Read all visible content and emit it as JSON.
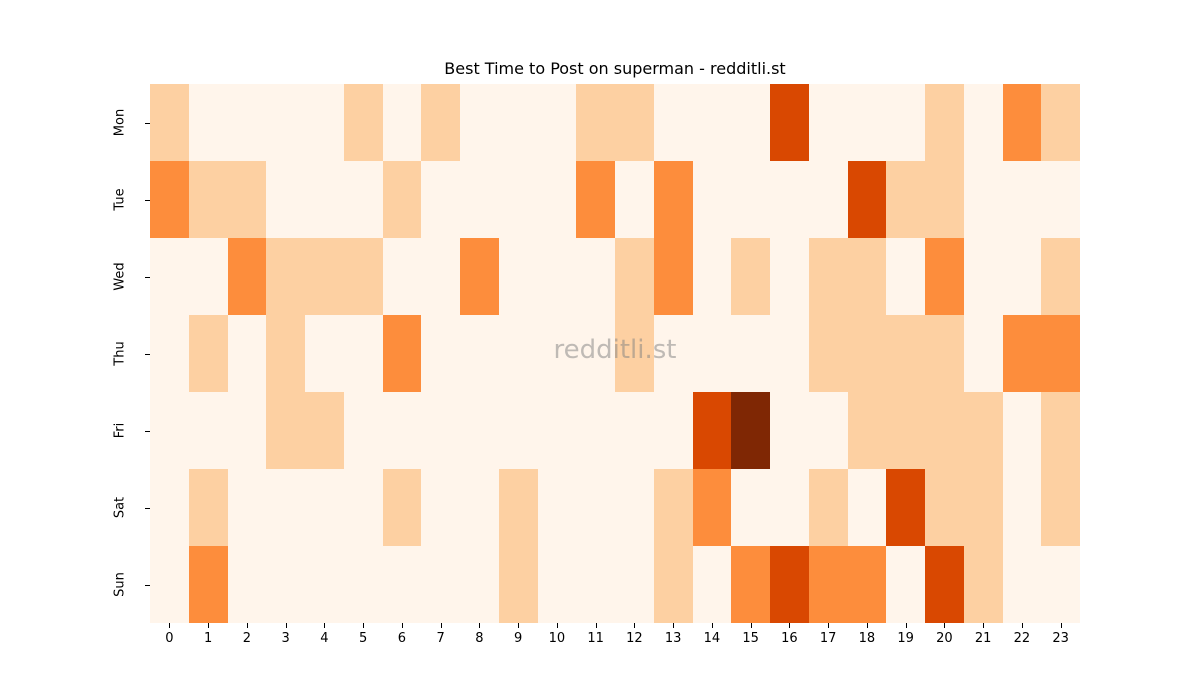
{
  "chart_data": {
    "type": "heatmap",
    "title": "Best Time to Post on superman - redditli.st",
    "watermark": "redditli.st",
    "xlabel": "",
    "ylabel": "",
    "x": [
      "0",
      "1",
      "2",
      "3",
      "4",
      "5",
      "6",
      "7",
      "8",
      "9",
      "10",
      "11",
      "12",
      "13",
      "14",
      "15",
      "16",
      "17",
      "18",
      "19",
      "20",
      "21",
      "22",
      "23"
    ],
    "y": [
      "Mon",
      "Tue",
      "Wed",
      "Thu",
      "Fri",
      "Sat",
      "Sun"
    ],
    "colormap": "Oranges",
    "level_colors": [
      "#fff5eb",
      "#fdd0a2",
      "#fd8d3c",
      "#d94801",
      "#7f2704"
    ],
    "values": [
      [
        1,
        0,
        0,
        0,
        0,
        1,
        0,
        1,
        0,
        0,
        0,
        1,
        1,
        0,
        0,
        0,
        3,
        0,
        0,
        0,
        1,
        0,
        2,
        1
      ],
      [
        2,
        1,
        1,
        0,
        0,
        0,
        1,
        0,
        0,
        0,
        0,
        2,
        0,
        2,
        0,
        0,
        0,
        0,
        3,
        1,
        1,
        0,
        0,
        0
      ],
      [
        0,
        0,
        2,
        1,
        1,
        1,
        0,
        0,
        2,
        0,
        0,
        0,
        1,
        2,
        0,
        1,
        0,
        1,
        1,
        0,
        2,
        0,
        0,
        1
      ],
      [
        0,
        1,
        0,
        1,
        0,
        0,
        2,
        0,
        0,
        0,
        0,
        0,
        1,
        0,
        0,
        0,
        0,
        1,
        1,
        1,
        1,
        0,
        2,
        2
      ],
      [
        0,
        0,
        0,
        1,
        1,
        0,
        0,
        0,
        0,
        0,
        0,
        0,
        0,
        0,
        3,
        4,
        0,
        0,
        1,
        1,
        1,
        1,
        0,
        1
      ],
      [
        0,
        1,
        0,
        0,
        0,
        0,
        1,
        0,
        0,
        1,
        0,
        0,
        0,
        1,
        2,
        0,
        0,
        1,
        0,
        3,
        1,
        1,
        0,
        1
      ],
      [
        0,
        2,
        0,
        0,
        0,
        0,
        0,
        0,
        0,
        1,
        0,
        0,
        0,
        1,
        0,
        2,
        3,
        2,
        2,
        0,
        3,
        1,
        0,
        0
      ]
    ],
    "legend": "none",
    "grid": false
  }
}
